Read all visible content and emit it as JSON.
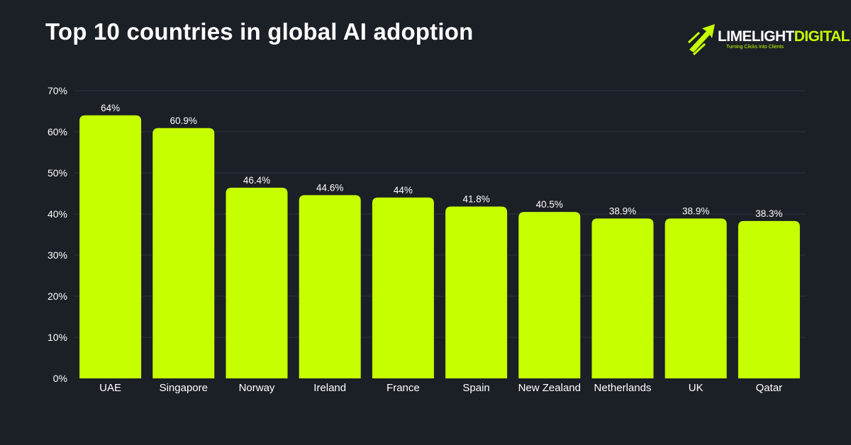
{
  "chart_data": {
    "type": "bar",
    "title": "Top 10 countries in global AI adoption",
    "categories": [
      "UAE",
      "Singapore",
      "Norway",
      "Ireland",
      "France",
      "Spain",
      "New Zealand",
      "Netherlands",
      "UK",
      "Qatar"
    ],
    "values": [
      64,
      60.9,
      46.4,
      44.6,
      44,
      41.8,
      40.5,
      38.9,
      38.9,
      38.3
    ],
    "value_labels": [
      "64%",
      "60.9%",
      "46.4%",
      "44.6%",
      "44%",
      "41.8%",
      "40.5%",
      "38.9%",
      "38.9%",
      "38.3%"
    ],
    "yticks": [
      0,
      10,
      20,
      30,
      40,
      50,
      60,
      70
    ],
    "ytick_labels": [
      "0%",
      "10%",
      "20%",
      "30%",
      "40%",
      "50%",
      "60%",
      "70%"
    ],
    "ylim": [
      0,
      70
    ],
    "xlabel": "",
    "ylabel": "",
    "grid": true,
    "bar_color": "#c6ff00",
    "background_color": "#1b1f26"
  },
  "logo": {
    "name_part1": "LIMELIGHT",
    "name_part2": "DIGITAL",
    "tagline": "Turning Clicks Into Clients",
    "accent_color": "#c6ff00"
  }
}
